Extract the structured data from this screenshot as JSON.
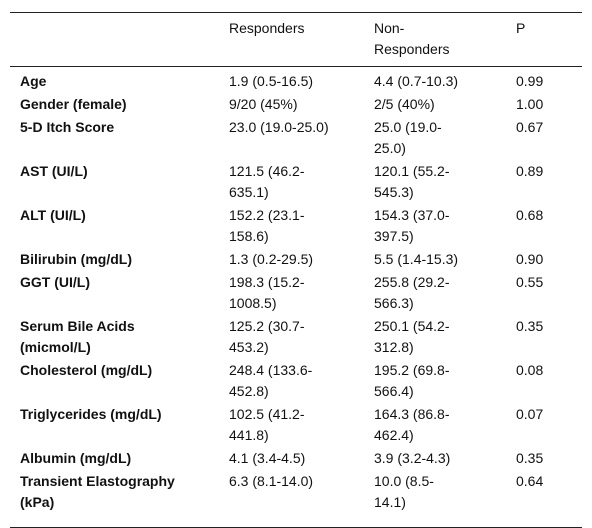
{
  "table": {
    "header": [
      "",
      "Responders",
      "Non-Responders",
      "P"
    ],
    "rows": [
      [
        "Age",
        "1.9 (0.5-16.5)",
        "4.4 (0.7-10.3)",
        "0.99"
      ],
      [
        "Gender (female)",
        "9/20 (45%)",
        "2/5 (40%)",
        "1.00"
      ],
      [
        "5-D Itch Score",
        "23.0 (19.0-25.0)",
        "25.0 (19.0-25.0)",
        "0.67"
      ],
      [
        "AST (UI/L)",
        "121.5 (46.2-635.1)",
        "120.1 (55.2-545.3)",
        "0.89"
      ],
      [
        "ALT (UI/L)",
        "152.2 (23.1-158.6)",
        "154.3 (37.0-397.5)",
        "0.68"
      ],
      [
        "Bilirubin (mg/dL)",
        "1.3 (0.2-29.5)",
        "5.5 (1.4-15.3)",
        "0.90"
      ],
      [
        "GGT (UI/L)",
        "198.3 (15.2-1008.5)",
        "255.8 (29.2-566.3)",
        "0.55"
      ],
      [
        "Serum Bile Acids (micmol/L)",
        "125.2 (30.7-453.2)",
        "250.1 (54.2-312.8)",
        "0.35"
      ],
      [
        "Cholesterol (mg/dL)",
        "248.4 (133.6-452.8)",
        "195.2 (69.8-566.4)",
        "0.08"
      ],
      [
        "Triglycerides (mg/dL)",
        "102.5 (41.2-441.8)",
        "164.3 (86.8-462.4)",
        "0.07"
      ],
      [
        "Albumin (mg/dL)",
        "4.1 (3.4-4.5)",
        "3.9 (3.2-4.3)",
        "0.35"
      ],
      [
        "Transient Elastography (kPa)",
        "6.3 (8.1-14.0)",
        "10.0 (8.5-14.1)",
        "0.64"
      ]
    ]
  }
}
